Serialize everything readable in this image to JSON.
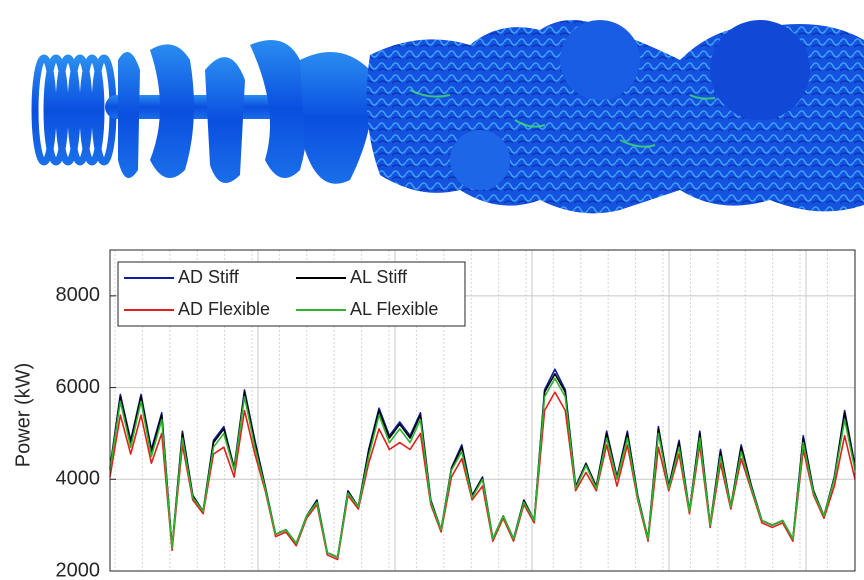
{
  "chart_data": {
    "type": "line",
    "y_label": "Power (kW)",
    "ylim": [
      2000,
      9000
    ],
    "yticks": [
      2000,
      4000,
      6000,
      8000
    ],
    "grid": true,
    "legend": "upper left",
    "series": [
      {
        "name": "AD Stiff",
        "color": "#0b1f9c",
        "values": [
          4250,
          5850,
          4850,
          5850,
          4650,
          5450,
          2500,
          5050,
          3650,
          3300,
          4850,
          5150,
          4250,
          5950,
          4850,
          3850,
          2800,
          2900,
          2600,
          3200,
          3550,
          2400,
          2300,
          3750,
          3400,
          4650,
          5550,
          4950,
          5250,
          4950,
          5450,
          3550,
          2900,
          4250,
          4750,
          3650,
          4050,
          2700,
          3200,
          2700,
          3550,
          3100,
          5950,
          6400,
          5950,
          3850,
          4350,
          3850,
          5050,
          4050,
          5050,
          3650,
          2700,
          5150,
          3850,
          4850,
          3300,
          5050,
          3000,
          4650,
          3400,
          4750,
          3850,
          3100,
          3000,
          3100,
          2700,
          4950,
          3750,
          3200,
          4050,
          5500,
          4300
        ]
      },
      {
        "name": "AL Stiff",
        "color": "#000000",
        "values": [
          4230,
          5800,
          4800,
          5800,
          4600,
          5400,
          2500,
          5000,
          3630,
          3300,
          4800,
          5100,
          4230,
          5900,
          4800,
          3830,
          2800,
          2900,
          2600,
          3200,
          3530,
          2400,
          2300,
          3730,
          3400,
          4600,
          5500,
          4900,
          5200,
          4900,
          5400,
          3530,
          2900,
          4230,
          4700,
          3630,
          4030,
          2700,
          3200,
          2700,
          3530,
          3100,
          5900,
          6300,
          5900,
          3830,
          4330,
          3830,
          5000,
          4030,
          5000,
          3630,
          2700,
          5100,
          3830,
          4800,
          3300,
          5000,
          3000,
          4600,
          3400,
          4700,
          3830,
          3100,
          3000,
          3100,
          2700,
          4900,
          3730,
          3200,
          4030,
          5450,
          4250
        ]
      },
      {
        "name": "AD Flexible",
        "color": "#e0201b",
        "values": [
          4050,
          5400,
          4550,
          5400,
          4350,
          5000,
          2450,
          4750,
          3550,
          3250,
          4550,
          4700,
          4050,
          5500,
          4550,
          3750,
          2750,
          2850,
          2550,
          3150,
          3450,
          2350,
          2250,
          3650,
          3350,
          4350,
          5100,
          4650,
          4800,
          4650,
          5000,
          3450,
          2850,
          4050,
          4450,
          3550,
          3850,
          2650,
          3150,
          2650,
          3450,
          3050,
          5500,
          5900,
          5500,
          3750,
          4150,
          3750,
          4750,
          3850,
          4750,
          3550,
          2650,
          4700,
          3750,
          4550,
          3250,
          4750,
          2950,
          4350,
          3350,
          4450,
          3750,
          3050,
          2950,
          3050,
          2650,
          4650,
          3650,
          3150,
          3850,
          4950,
          4000
        ]
      },
      {
        "name": "AL Flexible",
        "color": "#2db32d",
        "values": [
          4200,
          5700,
          4700,
          5700,
          4500,
          5300,
          2500,
          4900,
          3600,
          3300,
          4700,
          5000,
          4200,
          5800,
          4700,
          3800,
          2800,
          2900,
          2600,
          3200,
          3500,
          2400,
          2300,
          3700,
          3400,
          4500,
          5400,
          4800,
          5100,
          4800,
          5300,
          3500,
          2900,
          4200,
          4600,
          3600,
          4000,
          2700,
          3200,
          2700,
          3500,
          3100,
          5800,
          6200,
          5800,
          3800,
          4300,
          3800,
          4900,
          4000,
          4900,
          3600,
          2700,
          5000,
          3800,
          4700,
          3300,
          4900,
          3000,
          4500,
          3400,
          4600,
          3800,
          3100,
          3000,
          3100,
          2700,
          4800,
          3700,
          3200,
          4000,
          5300,
          4200
        ]
      }
    ]
  }
}
